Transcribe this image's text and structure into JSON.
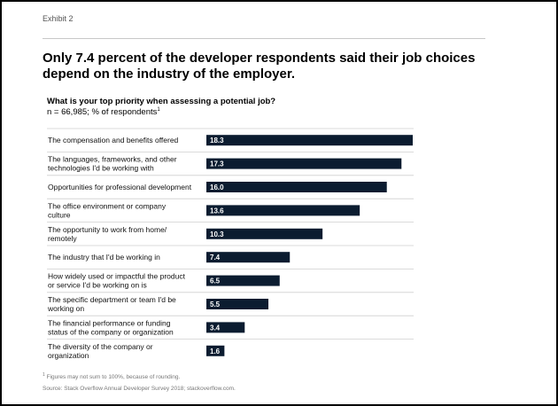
{
  "exhibit_label": "Exhibit 2",
  "headline": "Only 7.4 percent of the developer respondents said their job choices depend on the industry of the employer.",
  "question": "What is your top priority when assessing a potential job?",
  "respondents": "n = 66,985; % of respondents",
  "respondents_marker": "1",
  "footnote_marker": "1",
  "footnote": "Figures may not sum to 100%, because of rounding.",
  "source": "Source: Stack Overflow Annual Developer Survey 2018; stackoverflow.com.",
  "colors": {
    "bar": "#0b1c30",
    "bar_label": "#ffffff",
    "divider": "#cfcfcf"
  },
  "chart_data": {
    "type": "bar",
    "orientation": "horizontal",
    "title": "What is your top priority when assessing a potential job?",
    "subtitle": "n = 66,985; % of respondents",
    "xlim": [
      0,
      18.3
    ],
    "grid": false,
    "legend": "none",
    "categories": [
      [
        "The compensation and benefits offered"
      ],
      [
        "The languages, frameworks, and other",
        "technologies I'd be working with"
      ],
      [
        "Opportunities for professional development"
      ],
      [
        "The office environment or company",
        "culture"
      ],
      [
        "The opportunity to work from home/",
        "remotely"
      ],
      [
        "The industry that I'd be working in"
      ],
      [
        "How widely used or impactful the product",
        "or service I'd be working on is"
      ],
      [
        "The specific department or team I'd be",
        "working on"
      ],
      [
        "The financial performance or funding",
        "status of the company or organization"
      ],
      [
        "The diversity of the company or",
        "organization"
      ]
    ],
    "values": [
      18.3,
      17.3,
      16.0,
      13.6,
      10.3,
      7.4,
      6.5,
      5.5,
      3.4,
      1.6
    ],
    "value_labels": [
      "18.3",
      "17.3",
      "16.0",
      "13.6",
      "10.3",
      "7.4",
      "6.5",
      "5.5",
      "3.4",
      "1.6"
    ]
  }
}
